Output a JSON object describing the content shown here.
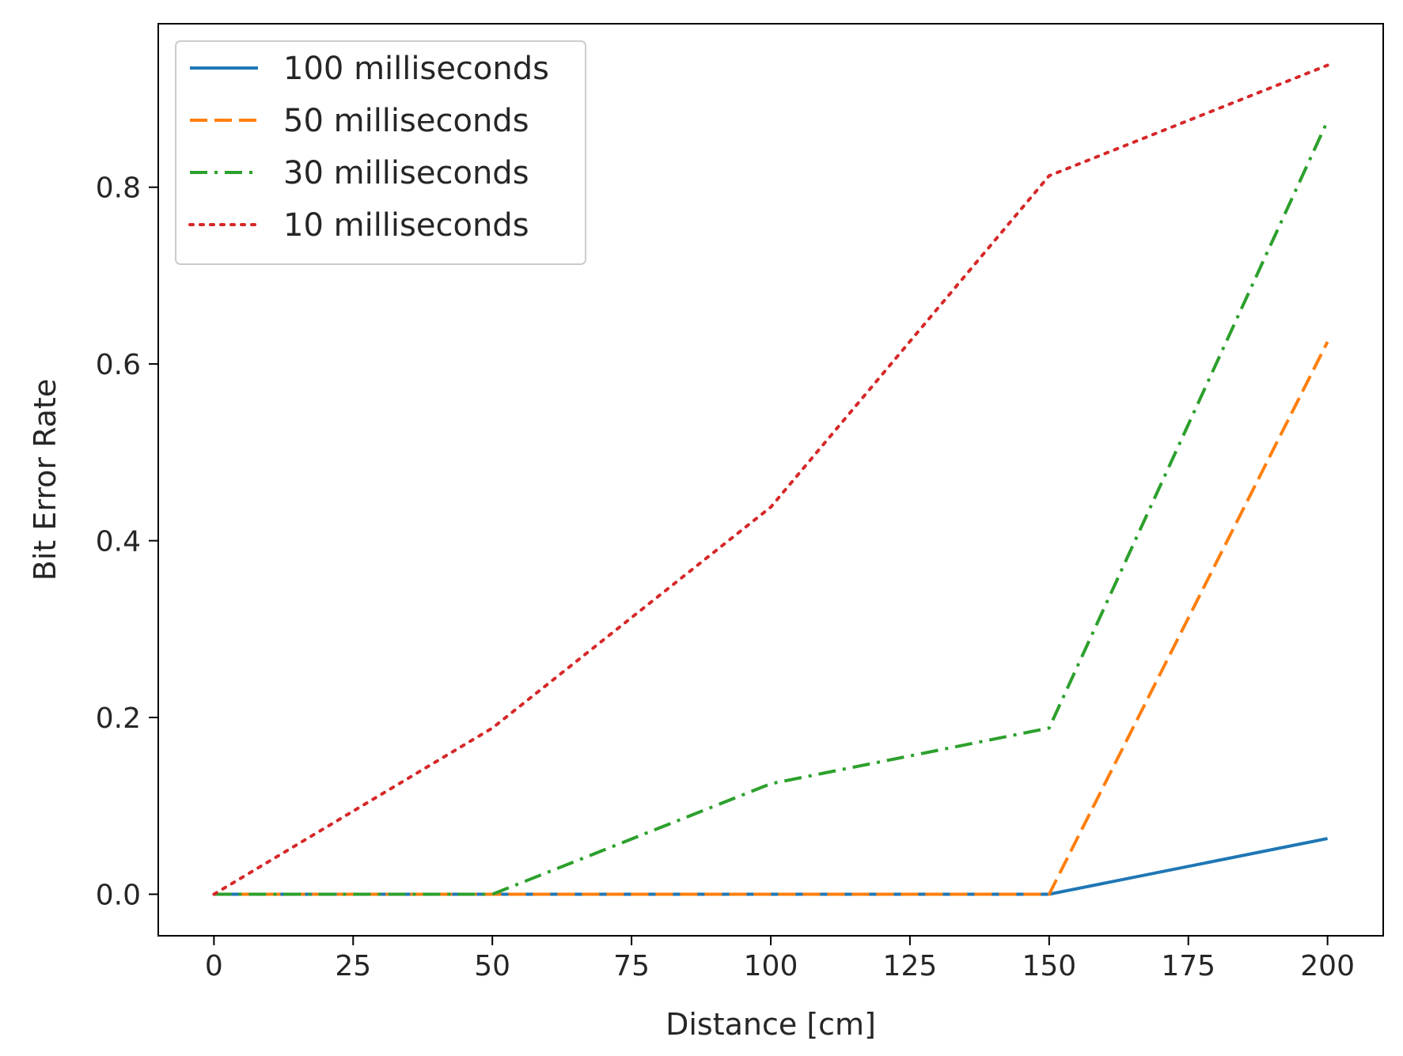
{
  "chart_data": {
    "type": "line",
    "title": "",
    "xlabel": "Distance [cm]",
    "ylabel": "Bit Error Rate",
    "x": [
      0,
      50,
      100,
      150,
      200
    ],
    "xlim": [
      -10,
      210
    ],
    "ylim": [
      -0.047,
      0.985
    ],
    "xticks": [
      0,
      25,
      50,
      75,
      100,
      125,
      150,
      175,
      200
    ],
    "xtick_labels": [
      "0",
      "25",
      "50",
      "75",
      "100",
      "125",
      "150",
      "175",
      "200"
    ],
    "yticks": [
      0.0,
      0.2,
      0.4,
      0.6,
      0.8
    ],
    "ytick_labels": [
      "0.0",
      "0.2",
      "0.4",
      "0.6",
      "0.8"
    ],
    "grid": false,
    "legend_position": "top-left",
    "series": [
      {
        "name": "100 milliseconds",
        "values": [
          0,
          0,
          0,
          0,
          0.063
        ],
        "color": "#1f77b4",
        "style": "solid"
      },
      {
        "name": "50 milliseconds",
        "values": [
          0,
          0,
          0,
          0,
          0.625
        ],
        "color": "#ff7f0e",
        "style": "dashed"
      },
      {
        "name": "30 milliseconds",
        "values": [
          0,
          0,
          0.125,
          0.188,
          0.875
        ],
        "color": "#2ca02c",
        "style": "dashdot"
      },
      {
        "name": "10 milliseconds",
        "values": [
          0,
          0.188,
          0.438,
          0.813,
          0.938
        ],
        "color": "#d62728",
        "style": "dotted"
      }
    ]
  }
}
